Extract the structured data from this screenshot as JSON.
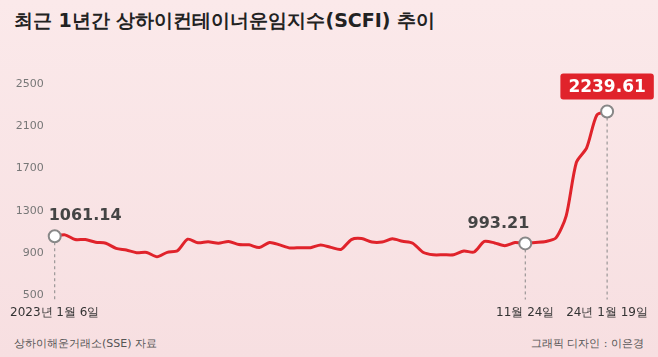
{
  "chart_data": {
    "type": "line",
    "title": "최근 1년간 상하이컨테이너운임지수(SCFI) 추이",
    "source": "상하이해운거래소(SSE) 자료",
    "credit": "그래픽 디자인 : 이은경",
    "categories": [
      "2023년 1월 6일",
      null,
      null,
      null,
      null,
      null,
      null,
      null,
      null,
      null,
      null,
      null,
      null,
      null,
      null,
      null,
      null,
      null,
      null,
      null,
      null,
      null,
      null,
      null,
      null,
      null,
      null,
      null,
      null,
      null,
      null,
      null,
      null,
      null,
      null,
      null,
      null,
      null,
      null,
      null,
      null,
      null,
      null,
      null,
      null,
      null,
      "11월 24일",
      null,
      null,
      null,
      null,
      null,
      null,
      null,
      "24년 1월 19일"
    ],
    "values": [
      1061.14,
      1074,
      1030,
      1030,
      1005,
      995,
      946,
      931,
      906,
      908,
      867,
      909,
      923,
      1033,
      999,
      1008,
      995,
      1011,
      983,
      980,
      954,
      1002,
      979,
      950,
      953,
      953,
      979,
      956,
      937,
      1029,
      1039,
      1006,
      1006,
      1037,
      1013,
      995,
      910,
      886,
      886,
      886,
      921,
      912,
      1012,
      998,
      972,
      1001,
      993.21,
      1002,
      1011,
      1045,
      1254,
      1760,
      1896,
      2206,
      2239.61
    ],
    "value_labels": [
      "1061.14",
      null,
      null,
      null,
      null,
      null,
      null,
      null,
      null,
      null,
      null,
      null,
      null,
      null,
      null,
      null,
      null,
      null,
      null,
      null,
      null,
      null,
      null,
      null,
      null,
      null,
      null,
      null,
      null,
      null,
      null,
      null,
      null,
      null,
      null,
      null,
      null,
      null,
      null,
      null,
      null,
      null,
      null,
      null,
      null,
      null,
      "993.21",
      null,
      null,
      null,
      null,
      null,
      null,
      null,
      "2239.61"
    ],
    "color": "#e0232b",
    "ylim": [
      500,
      2500
    ],
    "yticks": [
      500,
      900,
      1300,
      1700,
      2100,
      2500
    ],
    "grid": false
  }
}
